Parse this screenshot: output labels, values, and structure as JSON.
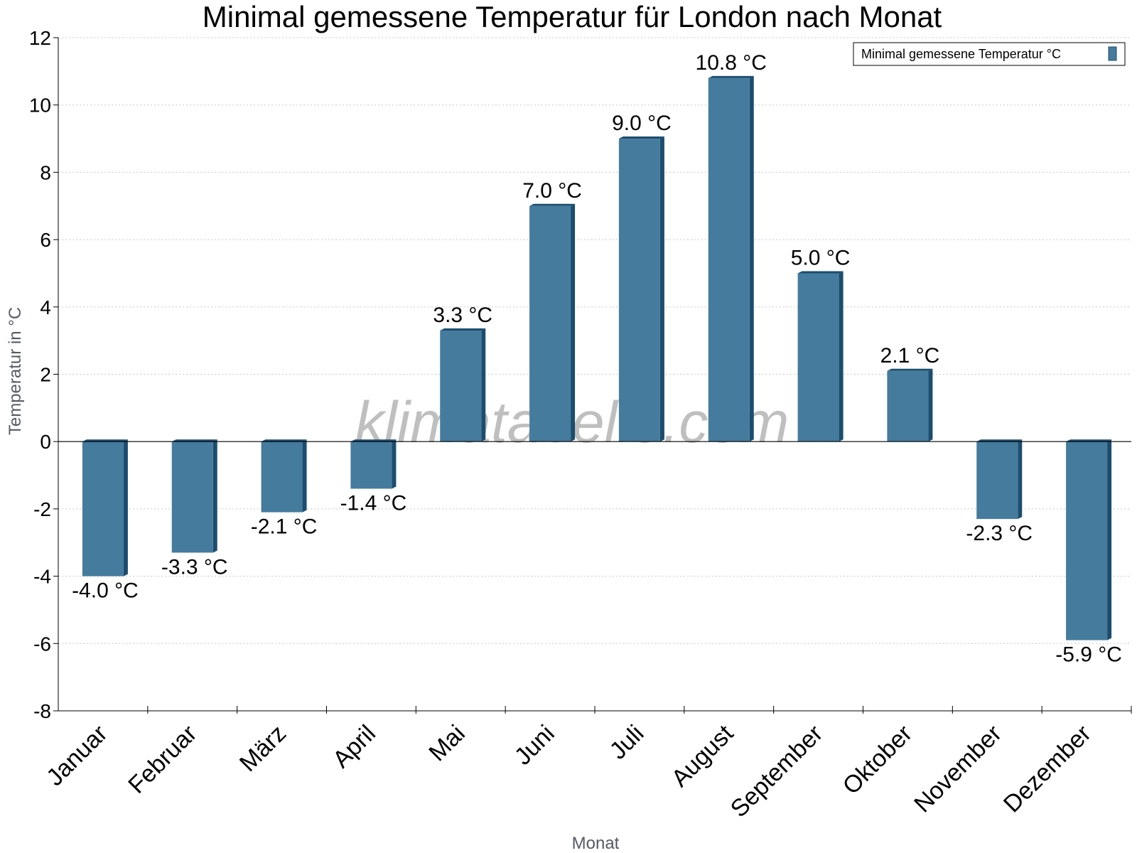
{
  "chart_data": {
    "type": "bar",
    "title": "Minimal gemessene Temperatur für London nach Monat",
    "xlabel": "Monat",
    "ylabel": "Temperatur in °C",
    "categories": [
      "Januar",
      "Februar",
      "März",
      "April",
      "Mai",
      "Juni",
      "Juli",
      "August",
      "September",
      "Oktober",
      "November",
      "Dezember"
    ],
    "series": [
      {
        "name": "Minimal gemessene Temperatur °C",
        "values": [
          -4.0,
          -3.3,
          -2.1,
          -1.4,
          3.3,
          7.0,
          9.0,
          10.8,
          5.0,
          2.1,
          -2.3,
          -5.9
        ]
      }
    ],
    "data_labels": [
      "-4.0 °C",
      "-3.3 °C",
      "-2.1 °C",
      "-1.4 °C",
      "3.3 °C",
      "7.0 °C",
      "9.0 °C",
      "10.8 °C",
      "5.0 °C",
      "2.1 °C",
      "-2.3 °C",
      "-5.9 °C"
    ],
    "y_ticks": [
      "-8",
      "-6",
      "-4",
      "-2",
      "0",
      "2",
      "4",
      "6",
      "8",
      "10",
      "12"
    ],
    "ylim": [
      -8,
      12
    ],
    "grid": true,
    "legend": "top-right",
    "watermark": "klimatabelle.com",
    "colors": {
      "bar_front": "#457b9d",
      "bar_side": "#1c4d6e",
      "bar_top": "#1c4d6e",
      "grid": "#c8c8c8",
      "axis": "#000000"
    }
  }
}
